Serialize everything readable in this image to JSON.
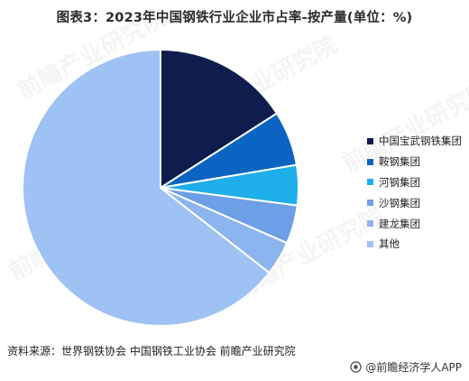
{
  "title": "图表3：2023年中国钢铁行业企业市占率-按产量(单位：%)",
  "watermark_text": "前瞻产业研究院",
  "chart_data": {
    "type": "pie",
    "title": "图表3：2023年中国钢铁行业企业市占率-按产量(单位：%)",
    "start_angle_deg": 0,
    "direction": "clockwise",
    "slices": [
      {
        "label": "中国宝武钢铁集团",
        "value": 15.95,
        "color": "#0e1d4d"
      },
      {
        "label": "鞍钢集团",
        "value": 6.4,
        "color": "#0a64c2"
      },
      {
        "label": "河钢集团",
        "value": 4.7,
        "color": "#1eaeea"
      },
      {
        "label": "沙钢集团",
        "value": 4.5,
        "color": "#6d9fe6"
      },
      {
        "label": "建龙集团",
        "value": 4.0,
        "color": "#8cb4ee"
      },
      {
        "label": "其他",
        "value": 64.45,
        "color": "#9dc2f3"
      }
    ],
    "legend_position": "right"
  },
  "source": "资料来源：世界钢铁协会 中国钢铁工业协会 前瞻产业研究院",
  "brand": "@前瞻经济学人APP"
}
